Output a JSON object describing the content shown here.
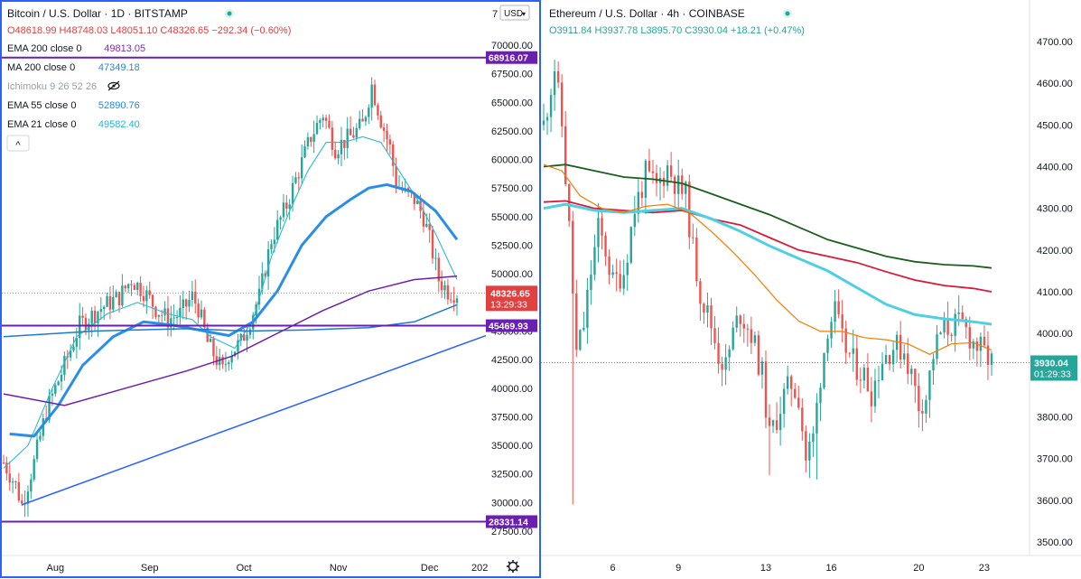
{
  "left_panel": {
    "header": {
      "symbol": "Bitcoin / U.S. Dollar · 1D · BITSTAMP",
      "ohlc": "O48618.99 H48748.03 L48051.10 C48326.65 −292.34 (−0.60%)",
      "currency_button": "USD"
    },
    "indicators": [
      {
        "name": "EMA 200 close 0",
        "value": "49813.05",
        "color": "#7b2fb5"
      },
      {
        "name": "MA 200 close 0",
        "value": "47349.18",
        "color": "#1e88e5"
      },
      {
        "name": "Ichimoku 9 26 52 26",
        "value": "",
        "color": "#9aa0a6"
      },
      {
        "name": "EMA 55 close 0",
        "value": "52890.76",
        "color": "#1e88e5"
      },
      {
        "name": "EMA 21 close 0",
        "value": "49582.40",
        "color": "#26b5d6"
      }
    ],
    "collapse_button": "^",
    "level_labels": [
      {
        "text": "68916.07",
        "value": 68916.07,
        "color": "#6a1fb0"
      },
      {
        "text": "45469.93",
        "value": 45469.93,
        "color": "#6a1fb0"
      },
      {
        "text": "28331.14",
        "value": 28331.14,
        "color": "#6a1fb0"
      }
    ],
    "price_label": {
      "price": "48326.65",
      "countdown": "13:29:33",
      "color": "#e04040"
    },
    "axis_top_partial": "7"
  },
  "right_panel": {
    "header": {
      "symbol": "Ethereum / U.S. Dollar · 4h · COINBASE",
      "ohlc": "O3911.84 H3937.78 L3895.70 C3930.04 +18.21 (+0.47%)"
    },
    "price_label": {
      "price": "3930.04",
      "countdown": "01:29:33",
      "color": "#26a69a"
    }
  },
  "chart_data": [
    {
      "type": "candlestick",
      "title": "Bitcoin / U.S. Dollar · 1D · BITSTAMP",
      "y_ticks": [
        "70000.00",
        "67500.00",
        "65000.00",
        "62500.00",
        "60000.00",
        "57500.00",
        "55000.00",
        "52500.00",
        "50000.00",
        "47500.00",
        "45000.00",
        "42500.00",
        "40000.00",
        "37500.00",
        "35000.00",
        "32500.00",
        "30000.00",
        "27500.00"
      ],
      "x_ticks": [
        "Aug",
        "Sep",
        "Oct",
        "Nov",
        "Dec",
        "202"
      ],
      "ylim": [
        26400,
        73100
      ],
      "horizontal_levels": [
        68916.07,
        45469.93,
        28331.14
      ],
      "trendline": {
        "from": [
          "late Jul",
          29800
        ],
        "to": [
          "end Dec",
          44600
        ]
      },
      "last_close": 48326.65
    },
    {
      "type": "candlestick",
      "title": "Ethereum / U.S. Dollar · 4h · COINBASE",
      "y_ticks": [
        "4700.00",
        "4600.00",
        "4500.00",
        "4400.00",
        "4300.00",
        "4200.00",
        "4100.00",
        "4000.00",
        "3900.00",
        "3800.00",
        "3700.00",
        "3600.00",
        "3500.00"
      ],
      "x_ticks": [
        "6",
        "9",
        "13",
        "16",
        "20",
        "23"
      ],
      "ylim": [
        3470,
        4800
      ],
      "last_close": 3930.04
    }
  ]
}
